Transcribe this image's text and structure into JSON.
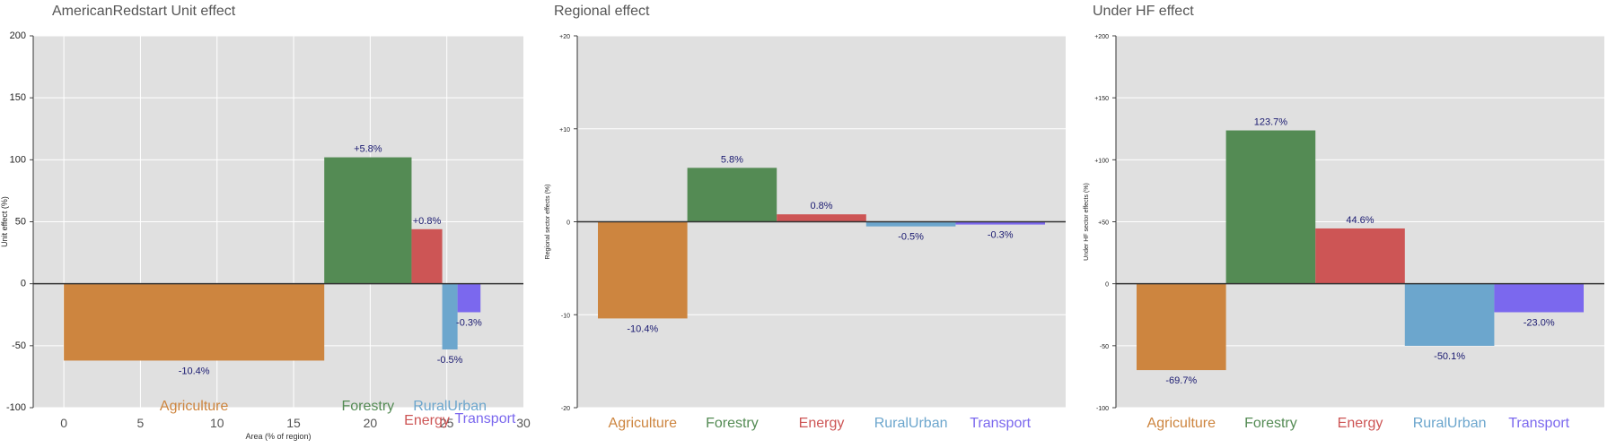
{
  "chart_data": [
    {
      "type": "bar",
      "variant": "variable-width",
      "title": "AmericanRedstart Unit effect",
      "xlabel": "Area (% of region)",
      "ylabel": "Unit effect (%)",
      "xlim": [
        -2,
        30
      ],
      "ylim": [
        -100,
        200
      ],
      "xticks": [
        0,
        5,
        10,
        15,
        20,
        25,
        30
      ],
      "yticks": [
        -100,
        -50,
        0,
        50,
        100,
        150,
        200
      ],
      "ytick_labels": [
        "-100",
        "-50",
        "0",
        "50",
        "100",
        "150",
        "200"
      ],
      "grid": true,
      "bars": [
        {
          "name": "Agriculture",
          "x0": 0,
          "x1": 17,
          "value": -62,
          "label": "-10.4%",
          "color": "#CD853F"
        },
        {
          "name": "Forestry",
          "x0": 17,
          "x1": 22.7,
          "value": 102,
          "label": "+5.8%",
          "color": "#548B54"
        },
        {
          "name": "Energy",
          "x0": 22.7,
          "x1": 24.7,
          "value": 44,
          "label": "+0.8%",
          "color": "#CD5555"
        },
        {
          "name": "RuralUrban",
          "x0": 24.7,
          "x1": 25.7,
          "value": -53,
          "label": "-0.5%",
          "color": "#6CA6CD"
        },
        {
          "name": "Transport",
          "x0": 25.7,
          "x1": 27.2,
          "value": -23,
          "label": "-0.3%",
          "color": "#7B68EE"
        }
      ]
    },
    {
      "type": "bar",
      "title": "Regional effect",
      "xlabel": "",
      "ylabel": "Regional sector effects (%)",
      "ylim": [
        -20,
        20
      ],
      "yticks": [
        -20,
        -10,
        0,
        10,
        20
      ],
      "ytick_labels": [
        "-20",
        "-10",
        "0",
        "+10",
        "+20"
      ],
      "grid": true,
      "categories": [
        "Agriculture",
        "Forestry",
        "Energy",
        "RuralUrban",
        "Transport"
      ],
      "values": [
        -10.4,
        5.8,
        0.8,
        -0.5,
        -0.3
      ],
      "labels": [
        "-10.4%",
        "5.8%",
        "0.8%",
        "-0.5%",
        "-0.3%"
      ],
      "colors": [
        "#CD853F",
        "#548B54",
        "#CD5555",
        "#6CA6CD",
        "#7B68EE"
      ]
    },
    {
      "type": "bar",
      "title": "Under HF effect",
      "xlabel": "",
      "ylabel": "Under HF sector effects (%)",
      "ylim": [
        -100,
        200
      ],
      "yticks": [
        -100,
        -50,
        0,
        50,
        100,
        150,
        200
      ],
      "ytick_labels": [
        "-100",
        "-50",
        "0",
        "+50",
        "+100",
        "+150",
        "+200"
      ],
      "grid": true,
      "categories": [
        "Agriculture",
        "Forestry",
        "Energy",
        "RuralUrban",
        "Transport"
      ],
      "values": [
        -69.7,
        123.7,
        44.6,
        -50.1,
        -23.0
      ],
      "labels": [
        "-69.7%",
        "123.7%",
        "44.6%",
        "-50.1%",
        "-23.0%"
      ],
      "colors": [
        "#CD853F",
        "#548B54",
        "#CD5555",
        "#6CA6CD",
        "#7B68EE"
      ]
    }
  ]
}
